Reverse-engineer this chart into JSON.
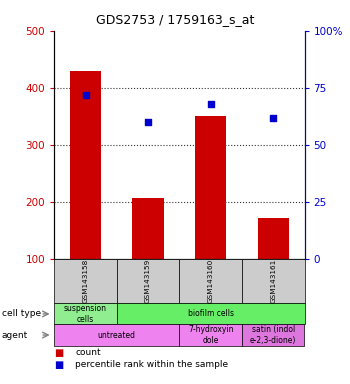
{
  "title": "GDS2753 / 1759163_s_at",
  "samples": [
    "GSM143158",
    "GSM143159",
    "GSM143160",
    "GSM143161"
  ],
  "counts": [
    430,
    207,
    350,
    173
  ],
  "percentile_ranks": [
    72,
    60,
    68,
    62
  ],
  "ylim_left": [
    100,
    500
  ],
  "ylim_right": [
    0,
    100
  ],
  "yticks_left": [
    100,
    200,
    300,
    400,
    500
  ],
  "yticks_right": [
    0,
    25,
    50,
    75,
    100
  ],
  "bar_color": "#cc0000",
  "dot_color": "#0000cc",
  "bar_width": 0.5,
  "cell_type_spans": [
    1,
    3
  ],
  "cell_type_labels": [
    "suspension\ncells",
    "biofilm cells"
  ],
  "cell_type_colors": [
    "#90ee90",
    "#66ee66"
  ],
  "agent_spans": [
    2,
    1,
    1
  ],
  "agent_labels": [
    "untreated",
    "7-hydroxyin\ndole",
    "satin (indol\ne-2,3-dione)"
  ],
  "agent_colors": [
    "#ee82ee",
    "#ee82ee",
    "#dd77dd"
  ],
  "sample_box_color": "#cccccc",
  "left_axis_color": "#cc0000",
  "right_axis_color": "#0000cc",
  "grid_color": "#333333",
  "legend_count_color": "#cc0000",
  "legend_pct_color": "#0000cc"
}
